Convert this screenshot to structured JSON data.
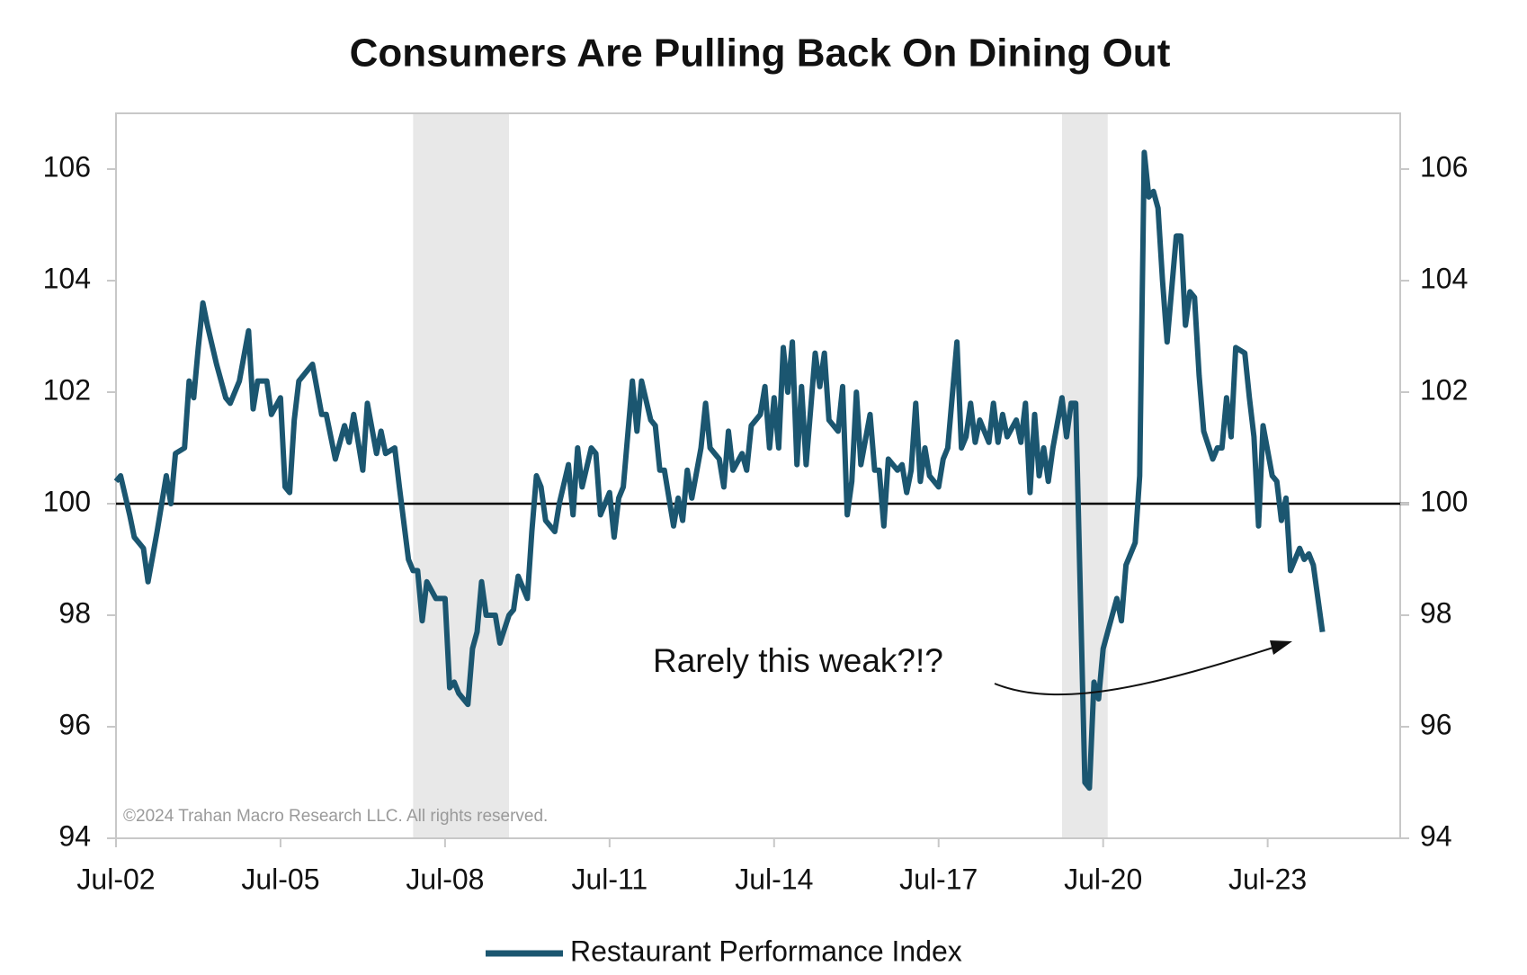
{
  "chart_data": {
    "type": "line",
    "title": "Consumers Are Pulling Back On Dining Out",
    "annotation": "Rarely this weak?!?",
    "source": "©2024 Trahan Macro Research LLC. All rights reserved.",
    "x": [
      "Jul-02",
      "Aug-02",
      "Oct-02",
      "Nov-02",
      "Jan-03",
      "Feb-03",
      "Apr-03",
      "Jun-03",
      "Jul-03",
      "Aug-03",
      "Oct-03",
      "Nov-03",
      "Dec-03",
      "Jan-04",
      "Feb-04",
      "Mar-04",
      "May-04",
      "Jul-04",
      "Aug-04",
      "Oct-04",
      "Dec-04",
      "Jan-05",
      "Feb-05",
      "Apr-05",
      "May-05",
      "Jul-05",
      "Aug-05",
      "Sep-05",
      "Oct-05",
      "Nov-05",
      "Jan-06",
      "Feb-06",
      "Apr-06",
      "May-06",
      "Jul-06",
      "Sep-06",
      "Oct-06",
      "Nov-06",
      "Jan-07",
      "Feb-07",
      "Apr-07",
      "May-07",
      "Jun-07",
      "Aug-07",
      "Sep-07",
      "Nov-07",
      "Dec-07",
      "Jan-08",
      "Feb-08",
      "Mar-08",
      "May-08",
      "Jul-08",
      "Aug-08",
      "Sep-08",
      "Oct-08",
      "Dec-08",
      "Jan-09",
      "Feb-09",
      "Mar-09",
      "Apr-09",
      "Jun-09",
      "Jul-09",
      "Sep-09",
      "Oct-09",
      "Nov-09",
      "Jan-10",
      "Feb-10",
      "Mar-10",
      "Apr-10",
      "May-10",
      "Jul-10",
      "Aug-10",
      "Oct-10",
      "Nov-10",
      "Dec-10",
      "Jan-11",
      "Mar-11",
      "Apr-11",
      "May-11",
      "Jul-11",
      "Aug-11",
      "Sep-11",
      "Oct-11",
      "Dec-11",
      "Jan-12",
      "Feb-12",
      "Apr-12",
      "May-12",
      "Jun-12",
      "Jul-12",
      "Sep-12",
      "Oct-12",
      "Nov-12",
      "Dec-12",
      "Jan-13",
      "Mar-13",
      "Apr-13",
      "May-13",
      "Jul-13",
      "Aug-13",
      "Sep-13",
      "Oct-13",
      "Dec-13",
      "Jan-14",
      "Feb-14",
      "Apr-14",
      "May-14",
      "Jun-14",
      "Jul-14",
      "Aug-14",
      "Sep-14",
      "Oct-14",
      "Nov-14",
      "Dec-14",
      "Jan-15",
      "Feb-15",
      "Apr-15",
      "May-15",
      "Jun-15",
      "Jul-15",
      "Sep-15",
      "Oct-15",
      "Nov-15",
      "Dec-15",
      "Jan-16",
      "Feb-16",
      "Apr-16",
      "May-16",
      "Jun-16",
      "Jul-16",
      "Aug-16",
      "Oct-16",
      "Nov-16",
      "Dec-16",
      "Jan-17",
      "Feb-17",
      "Mar-17",
      "Apr-17",
      "May-17",
      "Jul-17",
      "Aug-17",
      "Sep-17",
      "Nov-17",
      "Dec-17",
      "Jan-18",
      "Feb-18",
      "Mar-18",
      "Apr-18",
      "Jun-18",
      "Jul-18",
      "Aug-18",
      "Sep-18",
      "Oct-18",
      "Dec-18",
      "Jan-19",
      "Feb-19",
      "Mar-19",
      "Apr-19",
      "May-19",
      "Jun-19",
      "Jul-19",
      "Aug-19",
      "Oct-19",
      "Nov-19",
      "Dec-19",
      "Jan-20",
      "Mar-20",
      "Apr-20",
      "May-20",
      "Jun-20",
      "Jul-20",
      "Sep-20",
      "Oct-20",
      "Nov-20",
      "Dec-20",
      "Feb-21",
      "Mar-21",
      "Apr-21",
      "May-21",
      "Jun-21",
      "Jul-21",
      "Aug-21",
      "Sep-21",
      "Nov-21",
      "Dec-21",
      "Jan-22",
      "Feb-22",
      "Mar-22",
      "Apr-22",
      "May-22",
      "Jul-22",
      "Aug-22",
      "Sep-22",
      "Oct-22",
      "Nov-22",
      "Dec-22",
      "Feb-23",
      "Mar-23",
      "Apr-23",
      "May-23",
      "Jun-23",
      "Aug-23",
      "Sep-23",
      "Oct-23",
      "Nov-23",
      "Dec-23",
      "Feb-24",
      "Mar-24",
      "Apr-24",
      "May-24",
      "Jul-24"
    ],
    "series": [
      {
        "name": "Restaurant Performance Index",
        "color": "#1b5670",
        "values": [
          100.4,
          100.5,
          99.8,
          99.4,
          99.2,
          98.6,
          99.5,
          100.5,
          100.0,
          100.9,
          101.0,
          102.2,
          101.9,
          102.8,
          103.6,
          103.2,
          102.5,
          101.9,
          101.8,
          102.2,
          103.1,
          101.7,
          102.2,
          102.2,
          101.6,
          101.9,
          100.3,
          100.2,
          101.5,
          102.2,
          102.4,
          102.5,
          101.6,
          101.6,
          100.8,
          101.4,
          101.1,
          101.6,
          100.6,
          101.8,
          100.9,
          101.3,
          100.9,
          101.0,
          100.3,
          99.0,
          98.8,
          98.8,
          97.9,
          98.6,
          98.3,
          98.3,
          96.7,
          96.8,
          96.6,
          96.4,
          97.4,
          97.7,
          98.6,
          98.0,
          98.0,
          97.5,
          98.0,
          98.1,
          98.7,
          98.3,
          99.5,
          100.5,
          100.3,
          99.7,
          99.5,
          100.0,
          100.7,
          99.8,
          101.0,
          100.3,
          101.0,
          100.9,
          99.8,
          100.2,
          99.4,
          100.1,
          100.3,
          102.2,
          101.3,
          102.2,
          101.5,
          101.4,
          100.6,
          100.6,
          99.6,
          100.1,
          99.7,
          100.6,
          100.1,
          101.0,
          101.8,
          101.0,
          100.8,
          100.3,
          101.3,
          100.6,
          100.9,
          100.6,
          101.4,
          101.6,
          102.1,
          101.0,
          101.9,
          101.0,
          102.8,
          102.0,
          102.9,
          100.7,
          102.1,
          100.7,
          102.7,
          102.1,
          102.7,
          101.5,
          101.3,
          102.1,
          99.8,
          100.4,
          102.0,
          100.7,
          101.6,
          100.6,
          100.6,
          99.6,
          100.8,
          100.6,
          100.7,
          100.2,
          100.6,
          101.8,
          100.4,
          101.0,
          100.5,
          100.3,
          100.8,
          101.0,
          102.9,
          101.0,
          101.2,
          101.8,
          101.1,
          101.5,
          101.1,
          101.8,
          101.1,
          101.6,
          101.2,
          101.5,
          101.1,
          101.8,
          100.2,
          101.6,
          100.5,
          101.0,
          100.4,
          101.0,
          101.9,
          101.2,
          101.8,
          101.8,
          95.0,
          94.9,
          96.8,
          96.5,
          97.4,
          98.0,
          98.3,
          97.9,
          98.9,
          99.3,
          100.5,
          106.3,
          105.5,
          105.6,
          105.3,
          104.0,
          102.9,
          104.8,
          104.8,
          103.2,
          103.8,
          103.7,
          102.3,
          101.3,
          100.8,
          101.0,
          101.0,
          101.9,
          101.2,
          102.8,
          102.7,
          101.9,
          101.2,
          99.6,
          101.4,
          100.5,
          100.4,
          99.7,
          100.1,
          98.8,
          99.2,
          99.0,
          99.1,
          98.9,
          97.7
        ]
      }
    ],
    "xlim": [
      "Jul-02",
      "Dec-25"
    ],
    "xticks": [
      "Jul-02",
      "Jul-05",
      "Jul-08",
      "Jul-11",
      "Jul-14",
      "Jul-17",
      "Jul-20",
      "Jul-23"
    ],
    "ylim": [
      94,
      107
    ],
    "yticks": [
      94,
      96,
      98,
      100,
      102,
      104,
      106
    ],
    "y2lim": [
      94,
      107
    ],
    "y2ticks": [
      94,
      96,
      98,
      100,
      102,
      104,
      106
    ],
    "reference_line": 100,
    "shading": [
      [
        "Dec-07",
        "Sep-09"
      ],
      [
        "Oct-19",
        "Aug-20"
      ]
    ],
    "grid": false,
    "legend": "bottom"
  }
}
